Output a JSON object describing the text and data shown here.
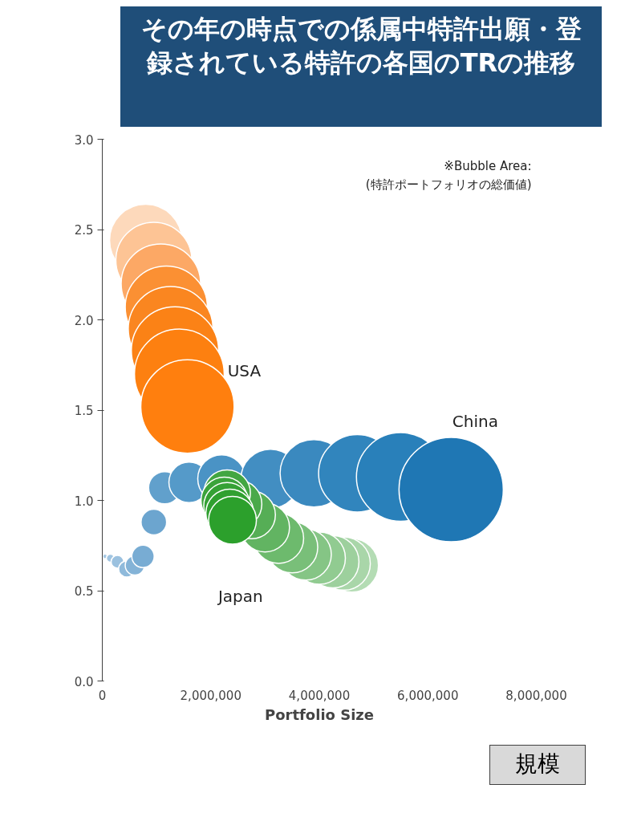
{
  "chart_data": {
    "type": "bubble",
    "title": "その年の時点での係属中特許出願・登録されている特許の各国のTRの推移",
    "xlabel": "Portfolio Size",
    "annotations": [
      "※Bubble Area:\n(特許ポートフォリオの総価値)",
      "規模"
    ],
    "xlim": [
      0,
      8000000
    ],
    "ylim": [
      0,
      3.0
    ],
    "xticks": [
      {
        "value": 0,
        "label": "0"
      },
      {
        "value": 2000000,
        "label": "2,000,000"
      },
      {
        "value": 4000000,
        "label": "4,000,000"
      },
      {
        "value": 6000000,
        "label": "6,000,000"
      },
      {
        "value": 8000000,
        "label": "8,000,000"
      }
    ],
    "yticks": [
      {
        "value": 0,
        "label": "0.0"
      },
      0.5,
      {
        "value": 1,
        "label": "1.0"
      },
      1.5,
      {
        "value": 2,
        "label": "2.0"
      },
      2.5,
      {
        "value": 3,
        "label": "3.0"
      }
    ],
    "grid": false,
    "series": [
      {
        "name": "China",
        "x": [
          50000,
          150000,
          280000,
          450000,
          600000,
          750000,
          950000,
          1150000,
          1600000,
          2200000,
          3100000,
          3900000,
          4700000,
          5500000,
          6430000
        ],
        "values": [
          0.69,
          0.68,
          0.66,
          0.62,
          0.64,
          0.69,
          0.88,
          1.07,
          1.1,
          1.12,
          1.12,
          1.15,
          1.15,
          1.13,
          1.06
        ],
        "sizes": [
          0.002,
          0.006,
          0.015,
          0.024,
          0.034,
          0.046,
          0.06,
          0.095,
          0.15,
          0.21,
          0.32,
          0.42,
          0.55,
          0.72,
          1
        ],
        "colors": [
          "#a6c8e3",
          "#a1c5e1",
          "#9bc1df",
          "#8fbadb",
          "#84b3d7",
          "#78acd3",
          "#6ca5cf",
          "#61a0cc",
          "#559ac9",
          "#4a93c5",
          "#428ec2",
          "#3a89bf",
          "#3185bd",
          "#2980ba",
          "#1f77b4"
        ]
      },
      {
        "name": "USA",
        "x": [
          800000,
          950000,
          1080000,
          1180000,
          1260000,
          1340000,
          1420000,
          1570000
        ],
        "values": [
          2.44,
          2.33,
          2.2,
          2.07,
          1.95,
          1.83,
          1.7,
          1.52
        ],
        "sizes": [
          0.48,
          0.53,
          0.58,
          0.62,
          0.66,
          0.7,
          0.74,
          0.8
        ],
        "colors": [
          "#fdd9bb",
          "#fdc495",
          "#fca865",
          "#fb9033",
          "#fa8620",
          "#fb8216",
          "#fd8010",
          "#ff7f0e"
        ]
      },
      {
        "name": "Japan",
        "x": [
          4600000,
          4450000,
          4250000,
          4000000,
          3750000,
          3500000,
          3250000,
          3000000,
          2750000,
          2500000,
          2300000,
          2250000,
          2300000,
          2350000,
          2400000
        ],
        "values": [
          0.64,
          0.65,
          0.66,
          0.68,
          0.7,
          0.74,
          0.79,
          0.85,
          0.92,
          0.98,
          1.04,
          1.0,
          0.97,
          0.93,
          0.89
        ],
        "sizes": [
          0.26,
          0.26,
          0.25,
          0.25,
          0.24,
          0.24,
          0.23,
          0.22,
          0.21,
          0.21,
          0.2,
          0.2,
          0.2,
          0.21,
          0.21
        ],
        "colors": [
          "#b4dcb4",
          "#a9d6a9",
          "#9dd09d",
          "#91cb91",
          "#85c585",
          "#79bf79",
          "#6dba6d",
          "#62b462",
          "#56ae56",
          "#4aa94a",
          "#42a642",
          "#3ba33b",
          "#35a135",
          "#30a030",
          "#2ca02c"
        ]
      }
    ]
  }
}
